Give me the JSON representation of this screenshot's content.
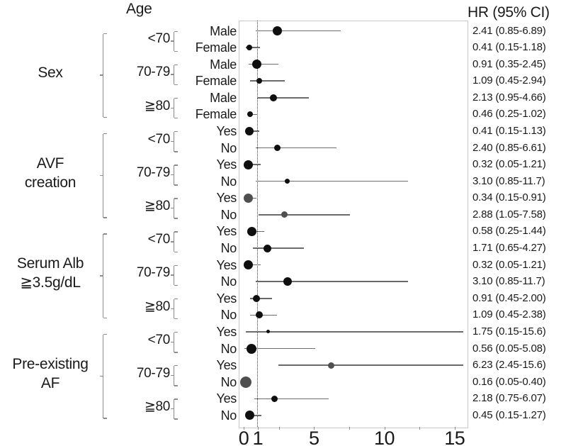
{
  "chart_data": {
    "type": "scatter",
    "subtype": "forest-plot",
    "headers": {
      "left": "Age",
      "right": "HR (95% CI)"
    },
    "x_axis": {
      "min": 0,
      "max": 16,
      "ref_line": 1,
      "ticks": [
        0,
        1,
        2.5,
        5,
        7.5,
        10,
        12.5,
        15
      ],
      "tick_labels": [
        {
          "v": 0,
          "t": "0"
        },
        {
          "v": 1,
          "t": "1"
        },
        {
          "v": 5,
          "t": "5"
        },
        {
          "v": 10,
          "t": "10"
        },
        {
          "v": 15,
          "t": "15"
        }
      ]
    },
    "colors": {
      "dot": "#0f0f0f",
      "dot_significant": "#4f4f4f",
      "ci_line": "#6b6b6b",
      "ref_line": "#3f3f3f",
      "panel_border": "#c9c9c9",
      "bracket": "#8c8c8c",
      "text": "#1a1a1a"
    },
    "groups": [
      {
        "label_lines": [
          "Sex"
        ],
        "ages": [
          {
            "age": "<70",
            "rows": [
              {
                "label": "Male",
                "hr": 2.41,
                "ci": [
                  0.85,
                  6.89
                ],
                "display": "2.41 (0.85-6.89)",
                "size": 13,
                "significant": false
              },
              {
                "label": "Female",
                "hr": 0.41,
                "ci": [
                  0.15,
                  1.18
                ],
                "display": "0.41 (0.15-1.18)",
                "size": 8,
                "significant": false
              }
            ]
          },
          {
            "age": "70-79",
            "rows": [
              {
                "label": "Male",
                "hr": 0.91,
                "ci": [
                  0.35,
                  2.45
                ],
                "display": "0.91 (0.35-2.45)",
                "size": 13,
                "significant": false
              },
              {
                "label": "Female",
                "hr": 1.09,
                "ci": [
                  0.45,
                  2.94
                ],
                "display": "1.09 (0.45-2.94)",
                "size": 8,
                "significant": false
              }
            ]
          },
          {
            "age": "≧80",
            "rows": [
              {
                "label": "Male",
                "hr": 2.13,
                "ci": [
                  0.95,
                  4.66
                ],
                "display": "2.13 (0.95-4.66)",
                "size": 10,
                "significant": false
              },
              {
                "label": "Female",
                "hr": 0.46,
                "ci": [
                  0.25,
                  1.02
                ],
                "display": "0.46 (0.25-1.02)",
                "size": 8,
                "significant": false
              }
            ]
          }
        ]
      },
      {
        "label_lines": [
          "AVF",
          "creation"
        ],
        "ages": [
          {
            "age": "<70",
            "rows": [
              {
                "label": "Yes",
                "hr": 0.41,
                "ci": [
                  0.15,
                  1.13
                ],
                "display": "0.41 (0.15-1.13)",
                "size": 12,
                "significant": false
              },
              {
                "label": "No",
                "hr": 2.4,
                "ci": [
                  0.85,
                  6.61
                ],
                "display": "2.40 (0.85-6.61)",
                "size": 9,
                "significant": false
              }
            ]
          },
          {
            "age": "70-79",
            "rows": [
              {
                "label": "Yes",
                "hr": 0.32,
                "ci": [
                  0.05,
                  1.21
                ],
                "display": "0.32 (0.05-1.21)",
                "size": 13,
                "significant": false
              },
              {
                "label": "No",
                "hr": 3.1,
                "ci": [
                  0.85,
                  11.7
                ],
                "display": "3.10 (0.85-11.7)",
                "size": 7,
                "significant": false
              }
            ]
          },
          {
            "age": "≧80",
            "rows": [
              {
                "label": "Yes",
                "hr": 0.34,
                "ci": [
                  0.15,
                  0.91
                ],
                "display": "0.34 (0.15-0.91)",
                "size": 13,
                "significant": true
              },
              {
                "label": "No",
                "hr": 2.88,
                "ci": [
                  1.05,
                  7.58
                ],
                "display": "2.88 (1.05-7.58)",
                "size": 9,
                "significant": true
              }
            ]
          }
        ]
      },
      {
        "label_lines": [
          "Serum Alb",
          "≧3.5g/dL"
        ],
        "ages": [
          {
            "age": "<70",
            "rows": [
              {
                "label": "Yes",
                "hr": 0.58,
                "ci": [
                  0.25,
                  1.44
                ],
                "display": "0.58 (0.25-1.44)",
                "size": 13,
                "significant": false
              },
              {
                "label": "No",
                "hr": 1.71,
                "ci": [
                  0.65,
                  4.27
                ],
                "display": "1.71 (0.65-4.27)",
                "size": 11,
                "significant": false
              }
            ]
          },
          {
            "age": "70-79",
            "rows": [
              {
                "label": "Yes",
                "hr": 0.32,
                "ci": [
                  0.05,
                  1.21
                ],
                "display": "0.32 (0.05-1.21)",
                "size": 13,
                "significant": false
              },
              {
                "label": "No",
                "hr": 3.1,
                "ci": [
                  0.85,
                  11.7
                ],
                "display": "3.10 (0.85-11.7)",
                "size": 12,
                "significant": false
              }
            ]
          },
          {
            "age": "≧80",
            "rows": [
              {
                "label": "Yes",
                "hr": 0.91,
                "ci": [
                  0.45,
                  2.0
                ],
                "display": "0.91 (0.45-2.00)",
                "size": 10,
                "significant": false
              },
              {
                "label": "No",
                "hr": 1.09,
                "ci": [
                  0.45,
                  2.38
                ],
                "display": "1.09 (0.45-2.38)",
                "size": 10,
                "significant": false
              }
            ]
          }
        ]
      },
      {
        "label_lines": [
          "Pre-existing",
          "AF"
        ],
        "ages": [
          {
            "age": "<70",
            "rows": [
              {
                "label": "Yes",
                "hr": 1.75,
                "ci": [
                  0.15,
                  15.6
                ],
                "display": "1.75 (0.15-15.6)",
                "size": 5,
                "significant": false
              },
              {
                "label": "No",
                "hr": 0.56,
                "ci": [
                  0.05,
                  5.08
                ],
                "display": "0.56 (0.05-5.08)",
                "size": 14,
                "significant": false
              }
            ]
          },
          {
            "age": "70-79",
            "rows": [
              {
                "label": "Yes",
                "hr": 6.23,
                "ci": [
                  2.45,
                  15.6
                ],
                "display": "6.23 (2.45-15.6)",
                "size": 9,
                "significant": true
              },
              {
                "label": "No",
                "hr": 0.16,
                "ci": [
                  0.05,
                  0.4
                ],
                "display": "0.16 (0.05-0.40)",
                "size": 16,
                "significant": true
              }
            ]
          },
          {
            "age": "≧80",
            "rows": [
              {
                "label": "Yes",
                "hr": 2.18,
                "ci": [
                  0.75,
                  6.07
                ],
                "display": "2.18 (0.75-6.07)",
                "size": 9,
                "significant": false
              },
              {
                "label": "No",
                "hr": 0.45,
                "ci": [
                  0.15,
                  1.27
                ],
                "display": "0.45 (0.15-1.27)",
                "size": 13,
                "significant": false
              }
            ]
          }
        ]
      }
    ]
  }
}
